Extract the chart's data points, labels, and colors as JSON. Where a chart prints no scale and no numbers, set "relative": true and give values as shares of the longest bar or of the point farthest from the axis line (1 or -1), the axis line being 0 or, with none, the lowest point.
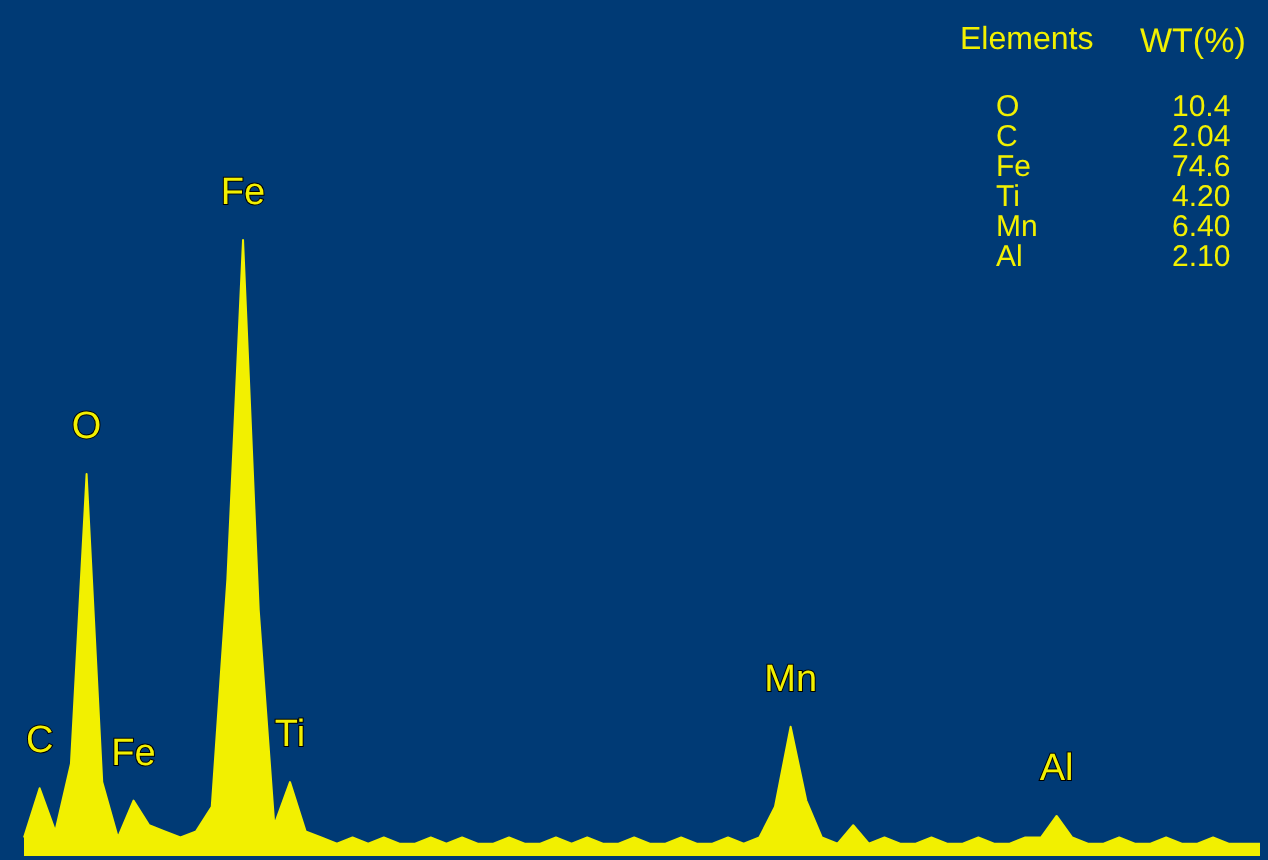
{
  "chart_data": [
    {
      "type": "area",
      "relative": true,
      "color": "#f2f000",
      "categories": [
        null,
        null,
        null,
        null,
        null,
        null,
        null,
        null,
        null,
        null,
        null,
        null,
        null,
        null,
        null,
        null,
        null,
        null,
        null,
        null,
        null,
        null,
        null,
        null,
        null,
        null,
        null,
        null,
        null,
        null,
        null,
        null,
        null,
        null,
        null,
        null,
        null,
        null,
        null,
        null,
        null,
        null,
        null,
        null,
        null,
        null,
        null,
        null,
        null,
        null,
        null,
        null,
        null,
        null,
        null,
        null,
        null,
        null,
        null,
        null,
        null,
        null,
        null,
        null,
        null,
        null,
        null,
        null,
        null,
        null,
        null,
        null,
        null,
        null,
        null,
        null,
        null,
        null,
        null,
        null
      ],
      "values": [
        0.03,
        0.11,
        0.04,
        0.15,
        0.62,
        0.12,
        0.03,
        0.09,
        0.05,
        0.04,
        0.03,
        0.04,
        0.08,
        0.45,
        1,
        0.4,
        0.05,
        0.12,
        0.04,
        0.03,
        0.02,
        0.03,
        0.02,
        0.03,
        0.02,
        0.02,
        0.03,
        0.02,
        0.03,
        0.02,
        0.02,
        0.03,
        0.02,
        0.02,
        0.03,
        0.02,
        0.03,
        0.02,
        0.02,
        0.03,
        0.02,
        0.02,
        0.03,
        0.02,
        0.02,
        0.03,
        0.02,
        0.03,
        0.08,
        0.21,
        0.09,
        0.03,
        0.02,
        0.05,
        0.02,
        0.03,
        0.02,
        0.02,
        0.03,
        0.02,
        0.02,
        0.03,
        0.02,
        0.02,
        0.03,
        0.03,
        0.065,
        0.03,
        0.02,
        0.02,
        0.03,
        0.02,
        0.02,
        0.03,
        0.02,
        0.02,
        0.03,
        0.02,
        0.02,
        0.02
      ],
      "annotations": [
        {
          "text": "C",
          "y": 0.11
        },
        {
          "text": "O",
          "y": 0.62
        },
        {
          "text": "Fe",
          "y": 0.09
        },
        {
          "text": "Fe",
          "y": 1
        },
        {
          "text": "Ti",
          "y": 0.12
        },
        {
          "text": "Mn",
          "y": 0.21
        },
        {
          "text": "Al",
          "y": 0.065
        }
      ]
    },
    {
      "type": "other",
      "color": "#f2f000",
      "annotations": [
        "Elements",
        "WT(%)",
        "O",
        "10.4",
        "C",
        "2.04",
        "Fe",
        "74.6",
        "Ti",
        "4.20",
        "Mn",
        "6.40",
        "Al",
        "2.10"
      ]
    }
  ]
}
